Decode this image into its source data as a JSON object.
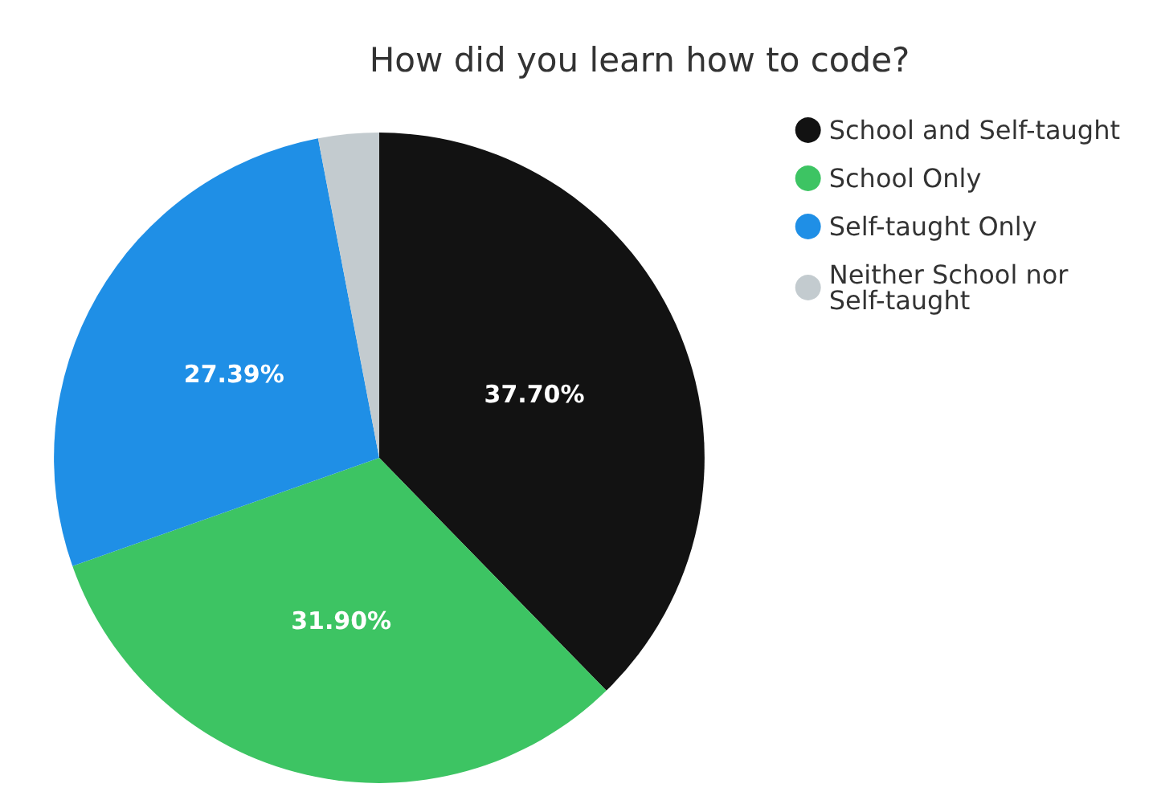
{
  "chart_data": {
    "type": "pie",
    "title": "How did you learn how to code?",
    "categories": [
      "School and Self-taught",
      "School Only",
      "Self-taught Only",
      "Neither School nor Self-taught"
    ],
    "values": [
      37.7,
      31.9,
      27.39,
      3.01
    ],
    "colors": [
      "#121212",
      "#3dc463",
      "#1f8fe6",
      "#c3cbcf"
    ],
    "value_labels": [
      "37.70%",
      "31.90%",
      "27.39%",
      null
    ],
    "legend": "top right"
  }
}
